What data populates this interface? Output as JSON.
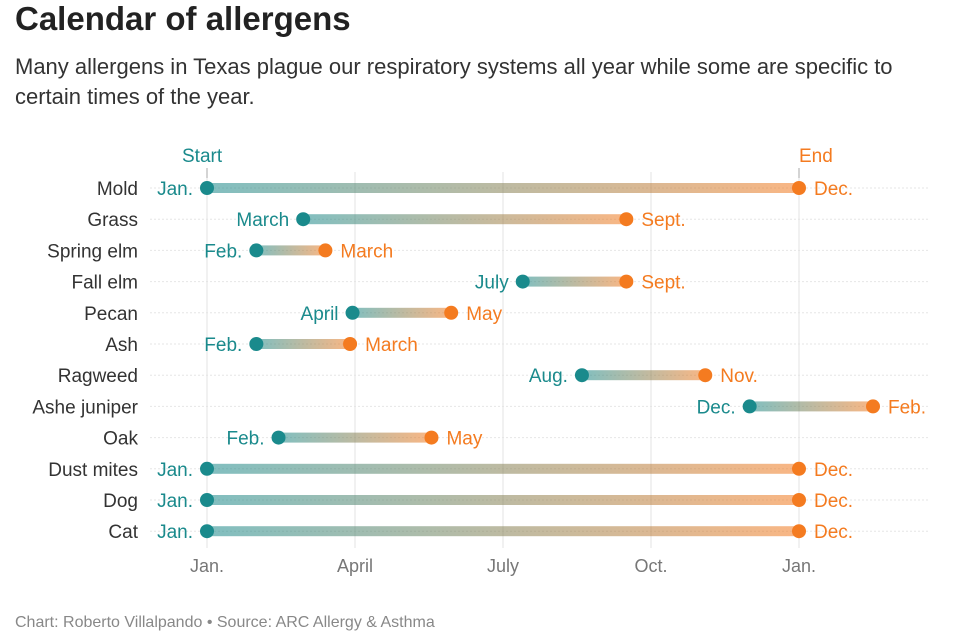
{
  "header": {
    "title": "Calendar of allergens",
    "subtitle": "Many allergens in Texas plague our respiratory systems all year while some are specific to certain times of the year."
  },
  "footer": {
    "credit": "Chart: Roberto Villalpando • Source: ARC Allergy & Asthma"
  },
  "colors": {
    "start": "#1a8a8c",
    "end": "#f47b20",
    "grid": "#e3e3e3",
    "text": "#333333"
  },
  "chart_data": {
    "type": "dumbbell",
    "x_unit": "months from start of January",
    "xlim": [
      -1,
      14.6
    ],
    "grid": true,
    "x_ticks": [
      {
        "value": 0,
        "label": "Jan."
      },
      {
        "value": 3,
        "label": "April"
      },
      {
        "value": 6,
        "label": "July"
      },
      {
        "value": 9,
        "label": "Oct."
      },
      {
        "value": 12,
        "label": "Jan."
      }
    ],
    "legend": {
      "start_label": "Start",
      "end_label": "End"
    },
    "rows": [
      {
        "name": "Mold",
        "start": 0,
        "end": 12,
        "start_label": "Jan.",
        "end_label": "Dec."
      },
      {
        "name": "Grass",
        "start": 1.95,
        "end": 8.5,
        "start_label": "March",
        "end_label": "Sept."
      },
      {
        "name": "Spring elm",
        "start": 1.0,
        "end": 2.4,
        "start_label": "Feb.",
        "end_label": "March"
      },
      {
        "name": "Fall elm",
        "start": 6.4,
        "end": 8.5,
        "start_label": "July",
        "end_label": "Sept."
      },
      {
        "name": "Pecan",
        "start": 2.95,
        "end": 4.95,
        "start_label": "April",
        "end_label": "May"
      },
      {
        "name": "Ash",
        "start": 1.0,
        "end": 2.9,
        "start_label": "Feb.",
        "end_label": "March"
      },
      {
        "name": "Ragweed",
        "start": 7.6,
        "end": 10.1,
        "start_label": "Aug.",
        "end_label": "Nov."
      },
      {
        "name": "Ashe juniper",
        "start": 11.0,
        "end": 13.5,
        "start_label": "Dec.",
        "end_label": "Feb."
      },
      {
        "name": "Oak",
        "start": 1.45,
        "end": 4.55,
        "start_label": "Feb.",
        "end_label": "May"
      },
      {
        "name": "Dust mites",
        "start": 0,
        "end": 12,
        "start_label": "Jan.",
        "end_label": "Dec."
      },
      {
        "name": "Dog",
        "start": 0,
        "end": 12,
        "start_label": "Jan.",
        "end_label": "Dec."
      },
      {
        "name": "Cat",
        "start": 0,
        "end": 12,
        "start_label": "Jan.",
        "end_label": "Dec."
      }
    ]
  }
}
